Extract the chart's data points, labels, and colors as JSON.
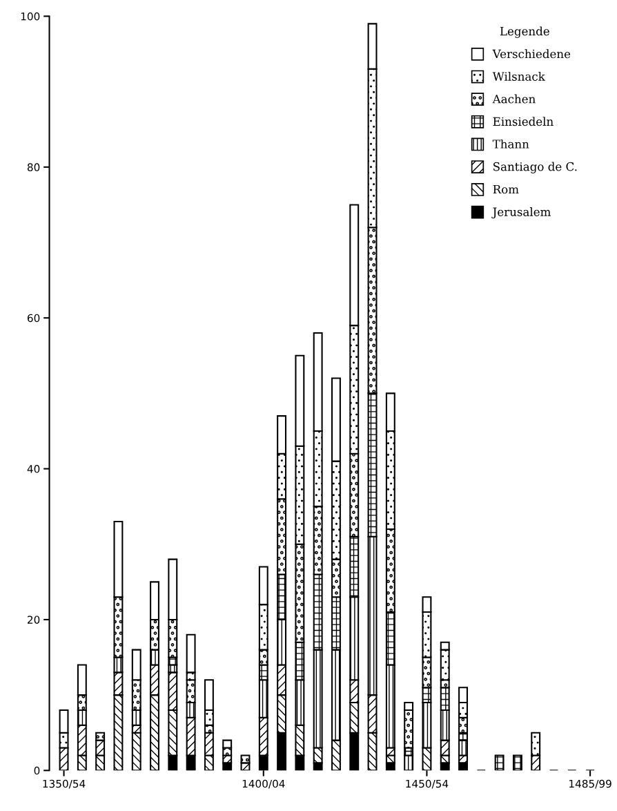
{
  "chart_data": {
    "type": "bar",
    "stacked": true,
    "legend_title": "Legende",
    "legend": "top right",
    "grid": false,
    "categories": [
      "1350/54",
      null,
      null,
      null,
      null,
      null,
      null,
      null,
      null,
      null,
      null,
      "1400/04",
      null,
      null,
      null,
      null,
      null,
      null,
      null,
      null,
      "1450/54",
      null,
      null,
      null,
      null,
      null,
      null,
      null,
      null,
      "1485/99"
    ],
    "ylim": [
      0,
      100
    ],
    "yticks": [
      0,
      20,
      40,
      60,
      80,
      100
    ],
    "series": [
      {
        "name": "Jerusalem",
        "color": "#000000",
        "values": [
          0,
          0,
          0,
          0,
          0,
          0,
          2,
          2,
          0,
          1,
          0,
          2,
          5,
          2,
          1,
          0,
          5,
          0,
          1,
          0,
          0,
          1,
          1,
          0,
          0,
          0,
          0,
          0,
          0,
          0
        ]
      },
      {
        "name": "Rom",
        "color": "#000000",
        "values": [
          0,
          2,
          2,
          10,
          5,
          10,
          6,
          0,
          2,
          0,
          0,
          0,
          5,
          4,
          2,
          4,
          4,
          5,
          1,
          0,
          3,
          1,
          0,
          0,
          0,
          0,
          0,
          0,
          0,
          0
        ]
      },
      {
        "name": "Santiago de C.",
        "color": "#000000",
        "values": [
          3,
          4,
          2,
          3,
          1,
          4,
          5,
          5,
          3,
          1,
          1,
          5,
          4,
          0,
          0,
          0,
          3,
          5,
          1,
          0,
          0,
          2,
          1,
          0,
          0,
          0,
          2,
          0,
          0,
          0
        ]
      },
      {
        "name": "Thann",
        "color": "#000000",
        "values": [
          0,
          2,
          0,
          2,
          2,
          2,
          1,
          2,
          0,
          0,
          0,
          5,
          6,
          6,
          13,
          12,
          11,
          21,
          11,
          2,
          6,
          4,
          2,
          0,
          0,
          0,
          0,
          0,
          0,
          0
        ]
      },
      {
        "name": "Einsiedeln",
        "color": "#000000",
        "values": [
          0,
          0,
          0,
          0,
          0,
          0,
          1,
          0,
          0,
          0,
          0,
          2,
          6,
          5,
          10,
          7,
          8,
          19,
          7,
          1,
          2,
          3,
          1,
          0,
          2,
          2,
          0,
          0,
          0,
          0
        ]
      },
      {
        "name": "Aachen",
        "color": "#000000",
        "values": [
          0,
          2,
          1,
          8,
          4,
          4,
          5,
          3,
          1,
          1,
          1,
          2,
          10,
          13,
          9,
          5,
          11,
          22,
          11,
          5,
          4,
          1,
          2,
          0,
          0,
          0,
          0,
          0,
          0,
          0
        ]
      },
      {
        "name": "Wilsnack",
        "color": "#000000",
        "values": [
          2,
          0,
          0,
          0,
          0,
          0,
          0,
          1,
          2,
          0,
          0,
          6,
          6,
          13,
          10,
          13,
          17,
          21,
          13,
          0,
          6,
          4,
          2,
          0,
          0,
          0,
          3,
          0,
          0,
          0
        ]
      },
      {
        "name": "Verschiedene",
        "color": "#ffffff",
        "values": [
          3,
          4,
          0,
          10,
          4,
          5,
          8,
          5,
          4,
          1,
          0,
          5,
          5,
          12,
          13,
          11,
          16,
          6,
          5,
          1,
          2,
          1,
          2,
          0,
          0,
          0,
          0,
          0,
          0,
          0
        ]
      }
    ]
  }
}
